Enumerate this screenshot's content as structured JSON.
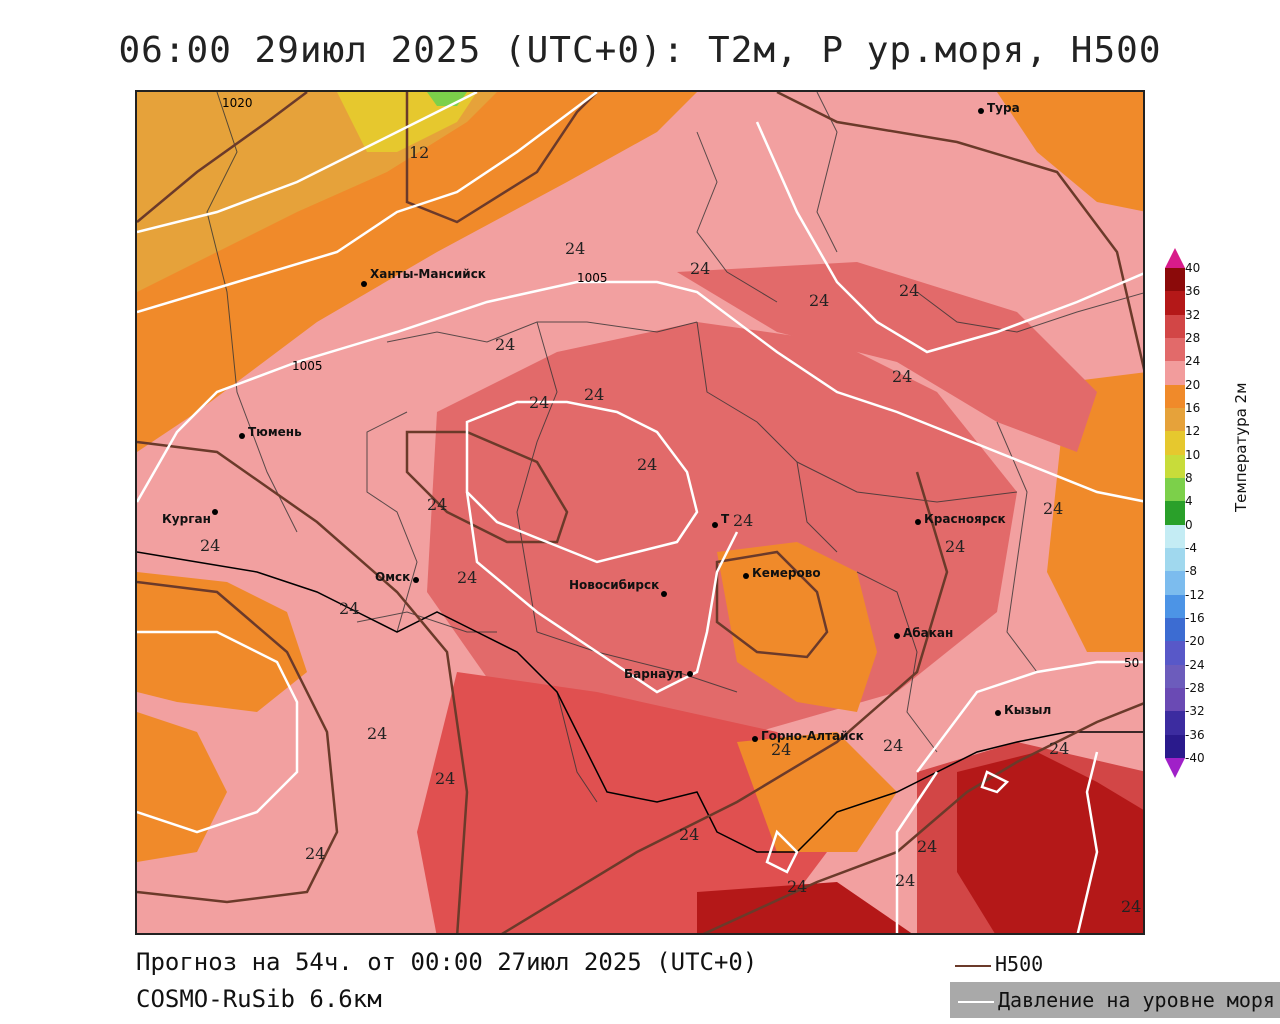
{
  "title": "06:00 29июл 2025 (UTC+0): T2м, P ур.моря, H500",
  "footer": {
    "forecast": "Прогноз на 54ч. от 00:00 27июл 2025 (UTC+0)",
    "model": "COSMO-RuSib 6.6км"
  },
  "legend": {
    "h500": "H500",
    "pressure": "Давление на уровне моря"
  },
  "colorbar": {
    "title": "Температура 2м",
    "ticks": [
      "40",
      "36",
      "32",
      "28",
      "24",
      "20",
      "16",
      "12",
      "10",
      "8",
      "4",
      "0",
      "-4",
      "-8",
      "-12",
      "-16",
      "-20",
      "-24",
      "-28",
      "-32",
      "-36",
      "-40"
    ],
    "colors": [
      "#8b0a0a",
      "#b41818",
      "#d24646",
      "#e26a6a",
      "#f29c9c",
      "#f08a2a",
      "#e6a23a",
      "#e6c82e",
      "#c8dc3a",
      "#7cd04a",
      "#2aa02a",
      "#c4ecf4",
      "#a0d8ee",
      "#7cbcee",
      "#4c94e6",
      "#3c6cd2",
      "#5858c8",
      "#6c5cbc",
      "#6a4ab4",
      "#3c2ca0",
      "#2a1a8c"
    ]
  },
  "cities": [
    {
      "name": "Тура"
    },
    {
      "name": "Ханты-Мансийск"
    },
    {
      "name": "Тюмень"
    },
    {
      "name": "Курган"
    },
    {
      "name": "Омск"
    },
    {
      "name": "Новосибирск"
    },
    {
      "name": "Т"
    },
    {
      "name": "Кемерово"
    },
    {
      "name": "Красноярск"
    },
    {
      "name": "Абакан"
    },
    {
      "name": "Барнаул"
    },
    {
      "name": "Горно-Алтайск"
    },
    {
      "name": "Кызыл"
    }
  ],
  "contour_labels": {
    "temp": "24",
    "temp12": "12",
    "p1020": "1020",
    "p1005": "1005",
    "p_edge": "50"
  }
}
